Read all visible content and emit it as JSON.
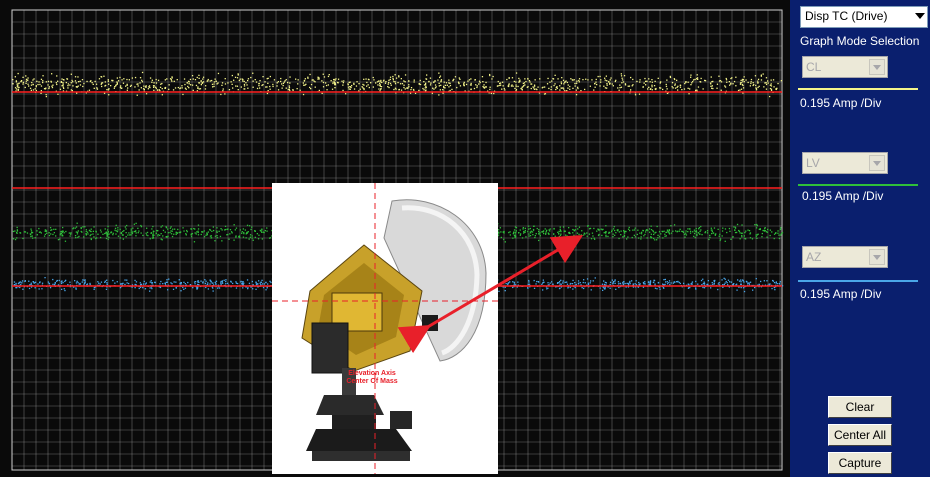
{
  "panel": {
    "mode_dropdown": {
      "value": "Disp TC (Drive)"
    },
    "title": "Graph Mode Selection",
    "channels": [
      {
        "name": "CL",
        "scale": "0.195 Amp /Div",
        "color": "#f5f58a"
      },
      {
        "name": "LV",
        "scale": "0.195 Amp /Div",
        "color": "#2fbf3a"
      },
      {
        "name": "AZ",
        "scale": "0.195 Amp /Div",
        "color": "#4aa6e8"
      }
    ],
    "buttons": {
      "clear": "Clear",
      "center_all": "Center All",
      "capture": "Capture"
    }
  },
  "photo": {
    "caption_line1": "Elevation Axis",
    "caption_line2": "Center Of Mass"
  },
  "colors": {
    "plot_bg": "#0a0a0a",
    "grid": "#b8b8b8",
    "reference_line": "#ff2020",
    "panel_bg": "#0a1f6e",
    "arrow": "#e8202a"
  }
}
